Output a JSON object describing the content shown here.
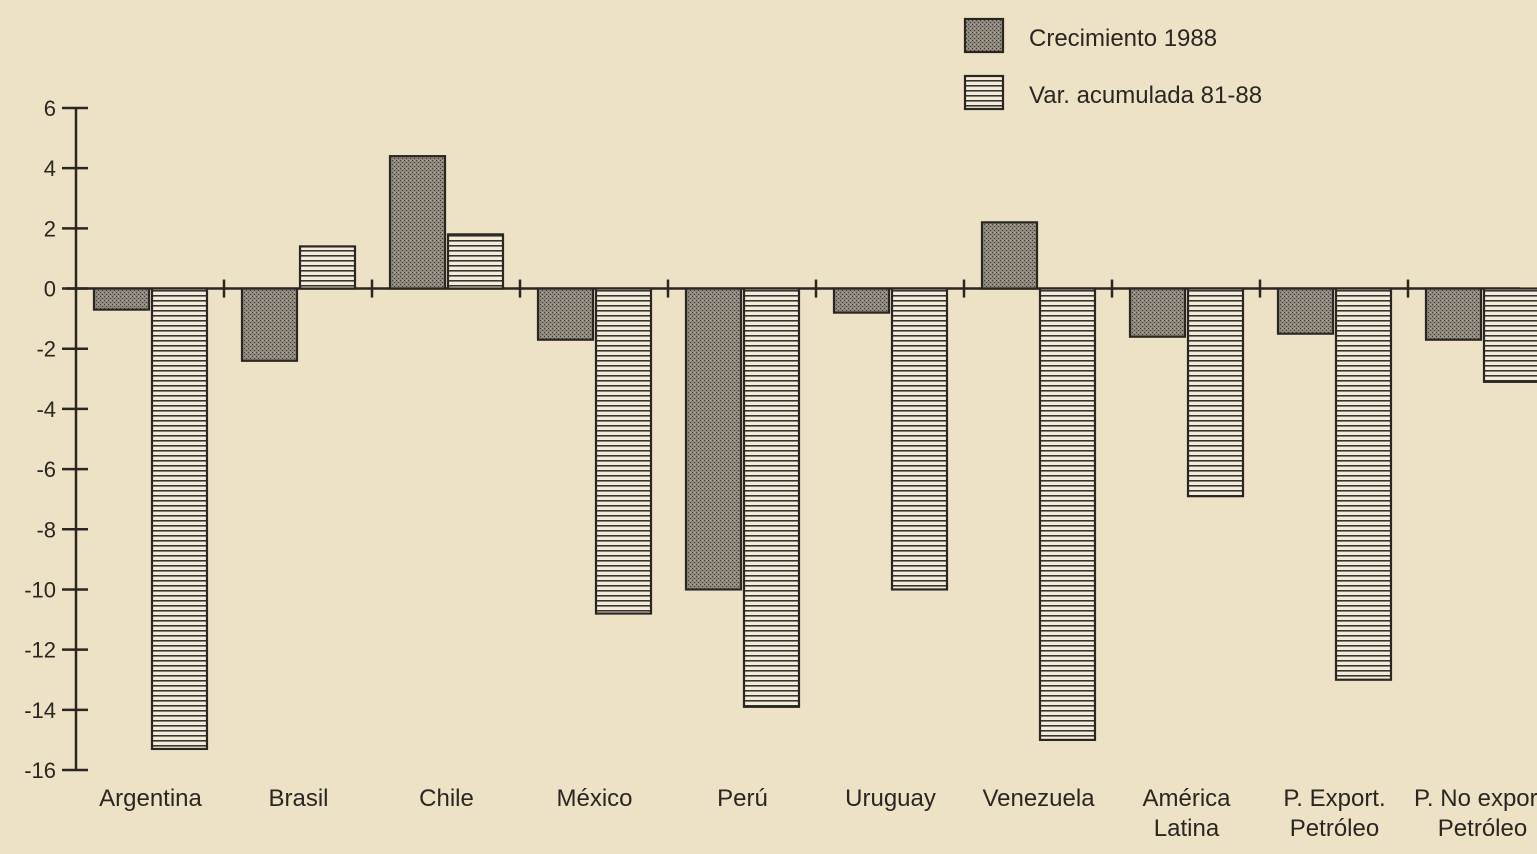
{
  "chart_data": {
    "type": "bar",
    "categories": [
      [
        "Argentina"
      ],
      [
        "Brasil"
      ],
      [
        "Chile"
      ],
      [
        "México"
      ],
      [
        "Perú"
      ],
      [
        "Uruguay"
      ],
      [
        "Venezuela"
      ],
      [
        "América",
        "Latina"
      ],
      [
        "P. Export.",
        "Petróleo"
      ],
      [
        "P. No export.",
        "Petróleo"
      ]
    ],
    "series": [
      {
        "name": "Crecimiento 1988",
        "pattern": "stipple",
        "values": [
          -0.7,
          -2.4,
          4.4,
          -1.7,
          -10.0,
          -0.8,
          2.2,
          -1.6,
          -1.5,
          -1.7
        ]
      },
      {
        "name": "Var. acumulada 81-88",
        "pattern": "horizontal-lines",
        "values": [
          -15.3,
          1.4,
          1.8,
          -10.8,
          -13.9,
          -10.0,
          -15.0,
          -6.9,
          -13.0,
          -3.1
        ]
      }
    ],
    "ylim": [
      -16,
      6
    ],
    "yticks": [
      6,
      4,
      2,
      0,
      -2,
      -4,
      -6,
      -8,
      -10,
      -12,
      -14,
      -16
    ],
    "xlabel": "",
    "ylabel": "",
    "grid": false,
    "legend_position": "top-right",
    "colors": {
      "background": "#ede1c6",
      "ink": "#2a2622",
      "stipple_fill": "#8a8379",
      "stripe_fill": "#f4ecda"
    }
  }
}
